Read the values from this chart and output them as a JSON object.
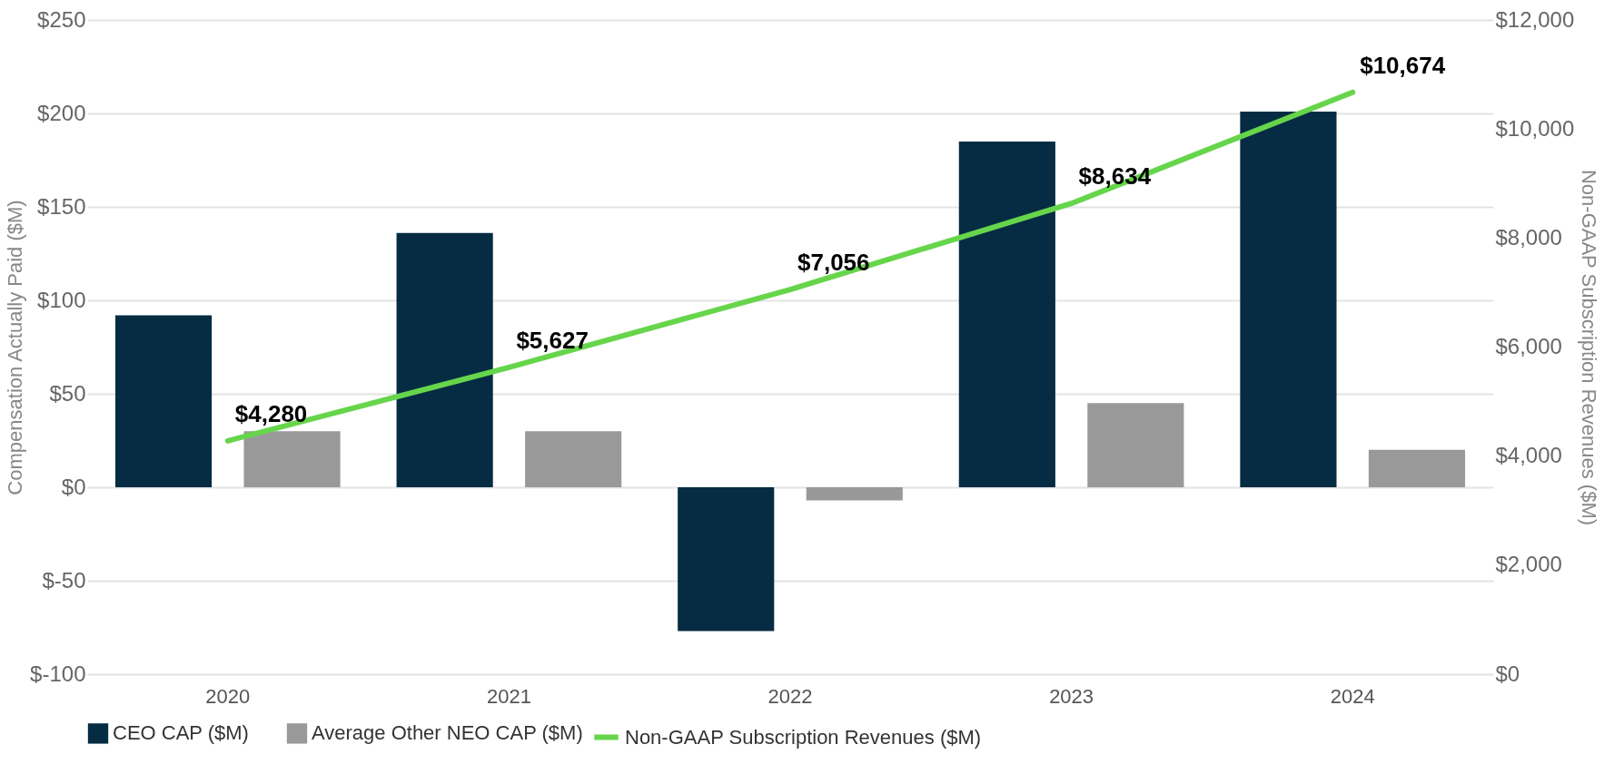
{
  "chart_data": {
    "type": "bar",
    "categories": [
      "2020",
      "2021",
      "2022",
      "2023",
      "2024"
    ],
    "ylabel": "Compensation Actually Paid ($M)",
    "y2label": "Non-GAAP Subscription Revenues ($M)",
    "ylim": [
      -100,
      250
    ],
    "yticks": [
      {
        "value": -100,
        "label": "$-100"
      },
      {
        "value": -50,
        "label": "$-50"
      },
      {
        "value": 0,
        "label": "$0"
      },
      {
        "value": 50,
        "label": "$50"
      },
      {
        "value": 100,
        "label": "$100"
      },
      {
        "value": 150,
        "label": "$150"
      },
      {
        "value": 200,
        "label": "$200"
      },
      {
        "value": 250,
        "label": "$250"
      }
    ],
    "y2lim": [
      0,
      12000
    ],
    "y2ticks": [
      {
        "value": 0,
        "label": "$0"
      },
      {
        "value": 2000,
        "label": "$2,000"
      },
      {
        "value": 4000,
        "label": "$4,000"
      },
      {
        "value": 6000,
        "label": "$6,000"
      },
      {
        "value": 8000,
        "label": "$8,000"
      },
      {
        "value": 10000,
        "label": "$10,000"
      },
      {
        "value": 12000,
        "label": "$12,000"
      }
    ],
    "grid": "y",
    "legend": "bottom",
    "series": [
      {
        "name": "CEO CAP ($M)",
        "color": "#052c42",
        "values": [
          92,
          136,
          -77,
          185,
          201
        ]
      },
      {
        "name": "Average Other NEO CAP ($M)",
        "color": "#999999",
        "values": [
          30,
          30,
          -7,
          45,
          20
        ]
      },
      {
        "name": "Non-GAAP Subscription Revenues ($M)",
        "type": "line",
        "axis": "y2",
        "color": "#66d54b",
        "values": [
          4280,
          5627,
          7056,
          8634,
          10674
        ],
        "value_labels": [
          "$4,280",
          "$5,627",
          "$7,056",
          "$8,634",
          "$10,674"
        ]
      }
    ]
  }
}
